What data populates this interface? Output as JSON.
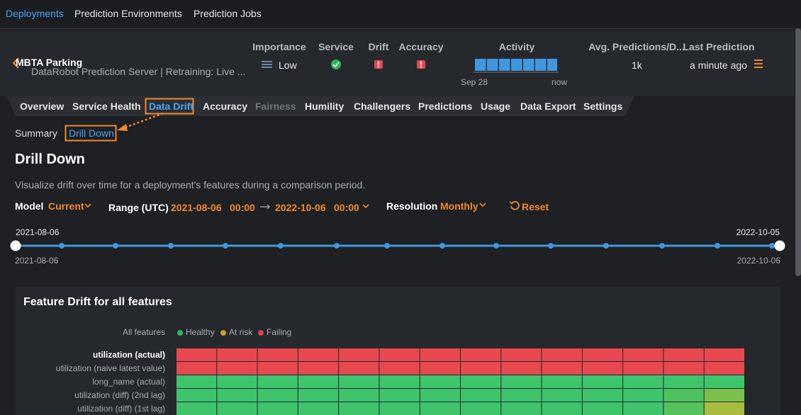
{
  "top_nav": [
    "Deployments",
    "Prediction Environments",
    "Prediction Jobs"
  ],
  "deployment": {
    "name": "MBTA Parking",
    "subtitle": "DataRobot Prediction Server | Retraining: Live ..."
  },
  "summary": {
    "headers": [
      "Importance",
      "Service",
      "Drift",
      "Accuracy",
      "Activity",
      "Avg. Predictions/D...",
      "Last Prediction"
    ],
    "importance": "Low",
    "activity_start": "Sep 28",
    "activity_end": "now",
    "avg_predictions": "1k",
    "last_prediction": "a minute ago"
  },
  "tabs": [
    "Overview",
    "Service Health",
    "Data Drift",
    "Accuracy",
    "Fairness",
    "Humility",
    "Challengers",
    "Predictions",
    "Usage",
    "Data Export",
    "Settings"
  ],
  "subtabs": [
    "Summary",
    "Drill Down"
  ],
  "page": {
    "title": "Drill Down",
    "description": "Visualize drift over time for a deployment's features during a comparison period.",
    "model_label": "Model",
    "model": "Current",
    "range_label": "Range (UTC)",
    "range_start_date": "2021-08-06",
    "range_start_time": "00:00",
    "range_end_date": "2022-10-06",
    "range_end_time": "00:00",
    "resolution_label": "Resolution",
    "resolution": "Monthly",
    "reset": "Reset"
  },
  "timeline": {
    "top_left": "2021-08-06",
    "top_right": "2022-10-05",
    "bottom_left": "2021-08-06",
    "bottom_right": "2022-10-06"
  },
  "feature_drift": {
    "title": "Feature Drift for all features",
    "all_features": "All features",
    "legend": [
      {
        "label": "Healthy",
        "color": "#2fb55a"
      },
      {
        "label": "At risk",
        "color": "#c9a227"
      },
      {
        "label": "Failing",
        "color": "#d9444b"
      }
    ],
    "rows": [
      {
        "label": "utilization (actual)",
        "cells": [
          "#e8484f",
          "#e8484f",
          "#e8484f",
          "#e8484f",
          "#e8484f",
          "#e8484f",
          "#e8484f",
          "#e8484f",
          "#e8484f",
          "#e8484f",
          "#e8484f",
          "#e8484f",
          "#e8484f",
          "#e8484f"
        ]
      },
      {
        "label": "utilization (naive latest value)",
        "cells": [
          "#e8484f",
          "#e8484f",
          "#e8484f",
          "#e8484f",
          "#e8484f",
          "#e8484f",
          "#e8484f",
          "#e8484f",
          "#e8484f",
          "#e8484f",
          "#e8484f",
          "#e8484f",
          "#e8484f",
          "#e8484f"
        ]
      },
      {
        "label": "long_name (actual)",
        "cells": [
          "#3ec46b",
          "#3ec46b",
          "#3ec46b",
          "#3ec46b",
          "#3ec46b",
          "#3ec46b",
          "#3ec46b",
          "#3ec46b",
          "#3ec46b",
          "#3ec46b",
          "#3ec46b",
          "#3ec46b",
          "#3ec46b",
          "#3ec46b"
        ]
      },
      {
        "label": "utilization (diff) (2nd lag)",
        "cells": [
          "#3ec46b",
          "#3ec46b",
          "#3ec46b",
          "#3ec46b",
          "#3ec46b",
          "#3ec46b",
          "#3ec46b",
          "#3ec46b",
          "#3ec46b",
          "#3ec46b",
          "#3ec46b",
          "#3ec46b",
          "#4cc25e",
          "#7cbf4a"
        ]
      },
      {
        "label": "utilization (diff) (1st lag)",
        "cells": [
          "#3ec46b",
          "#3ec46b",
          "#3ec46b",
          "#3ec46b",
          "#3ec46b",
          "#3ec46b",
          "#3ec46b",
          "#3ec46b",
          "#3ec46b",
          "#3ec46b",
          "#3ec46b",
          "#3ec46b",
          "#55c35a",
          "#a8bd3e"
        ]
      }
    ]
  }
}
